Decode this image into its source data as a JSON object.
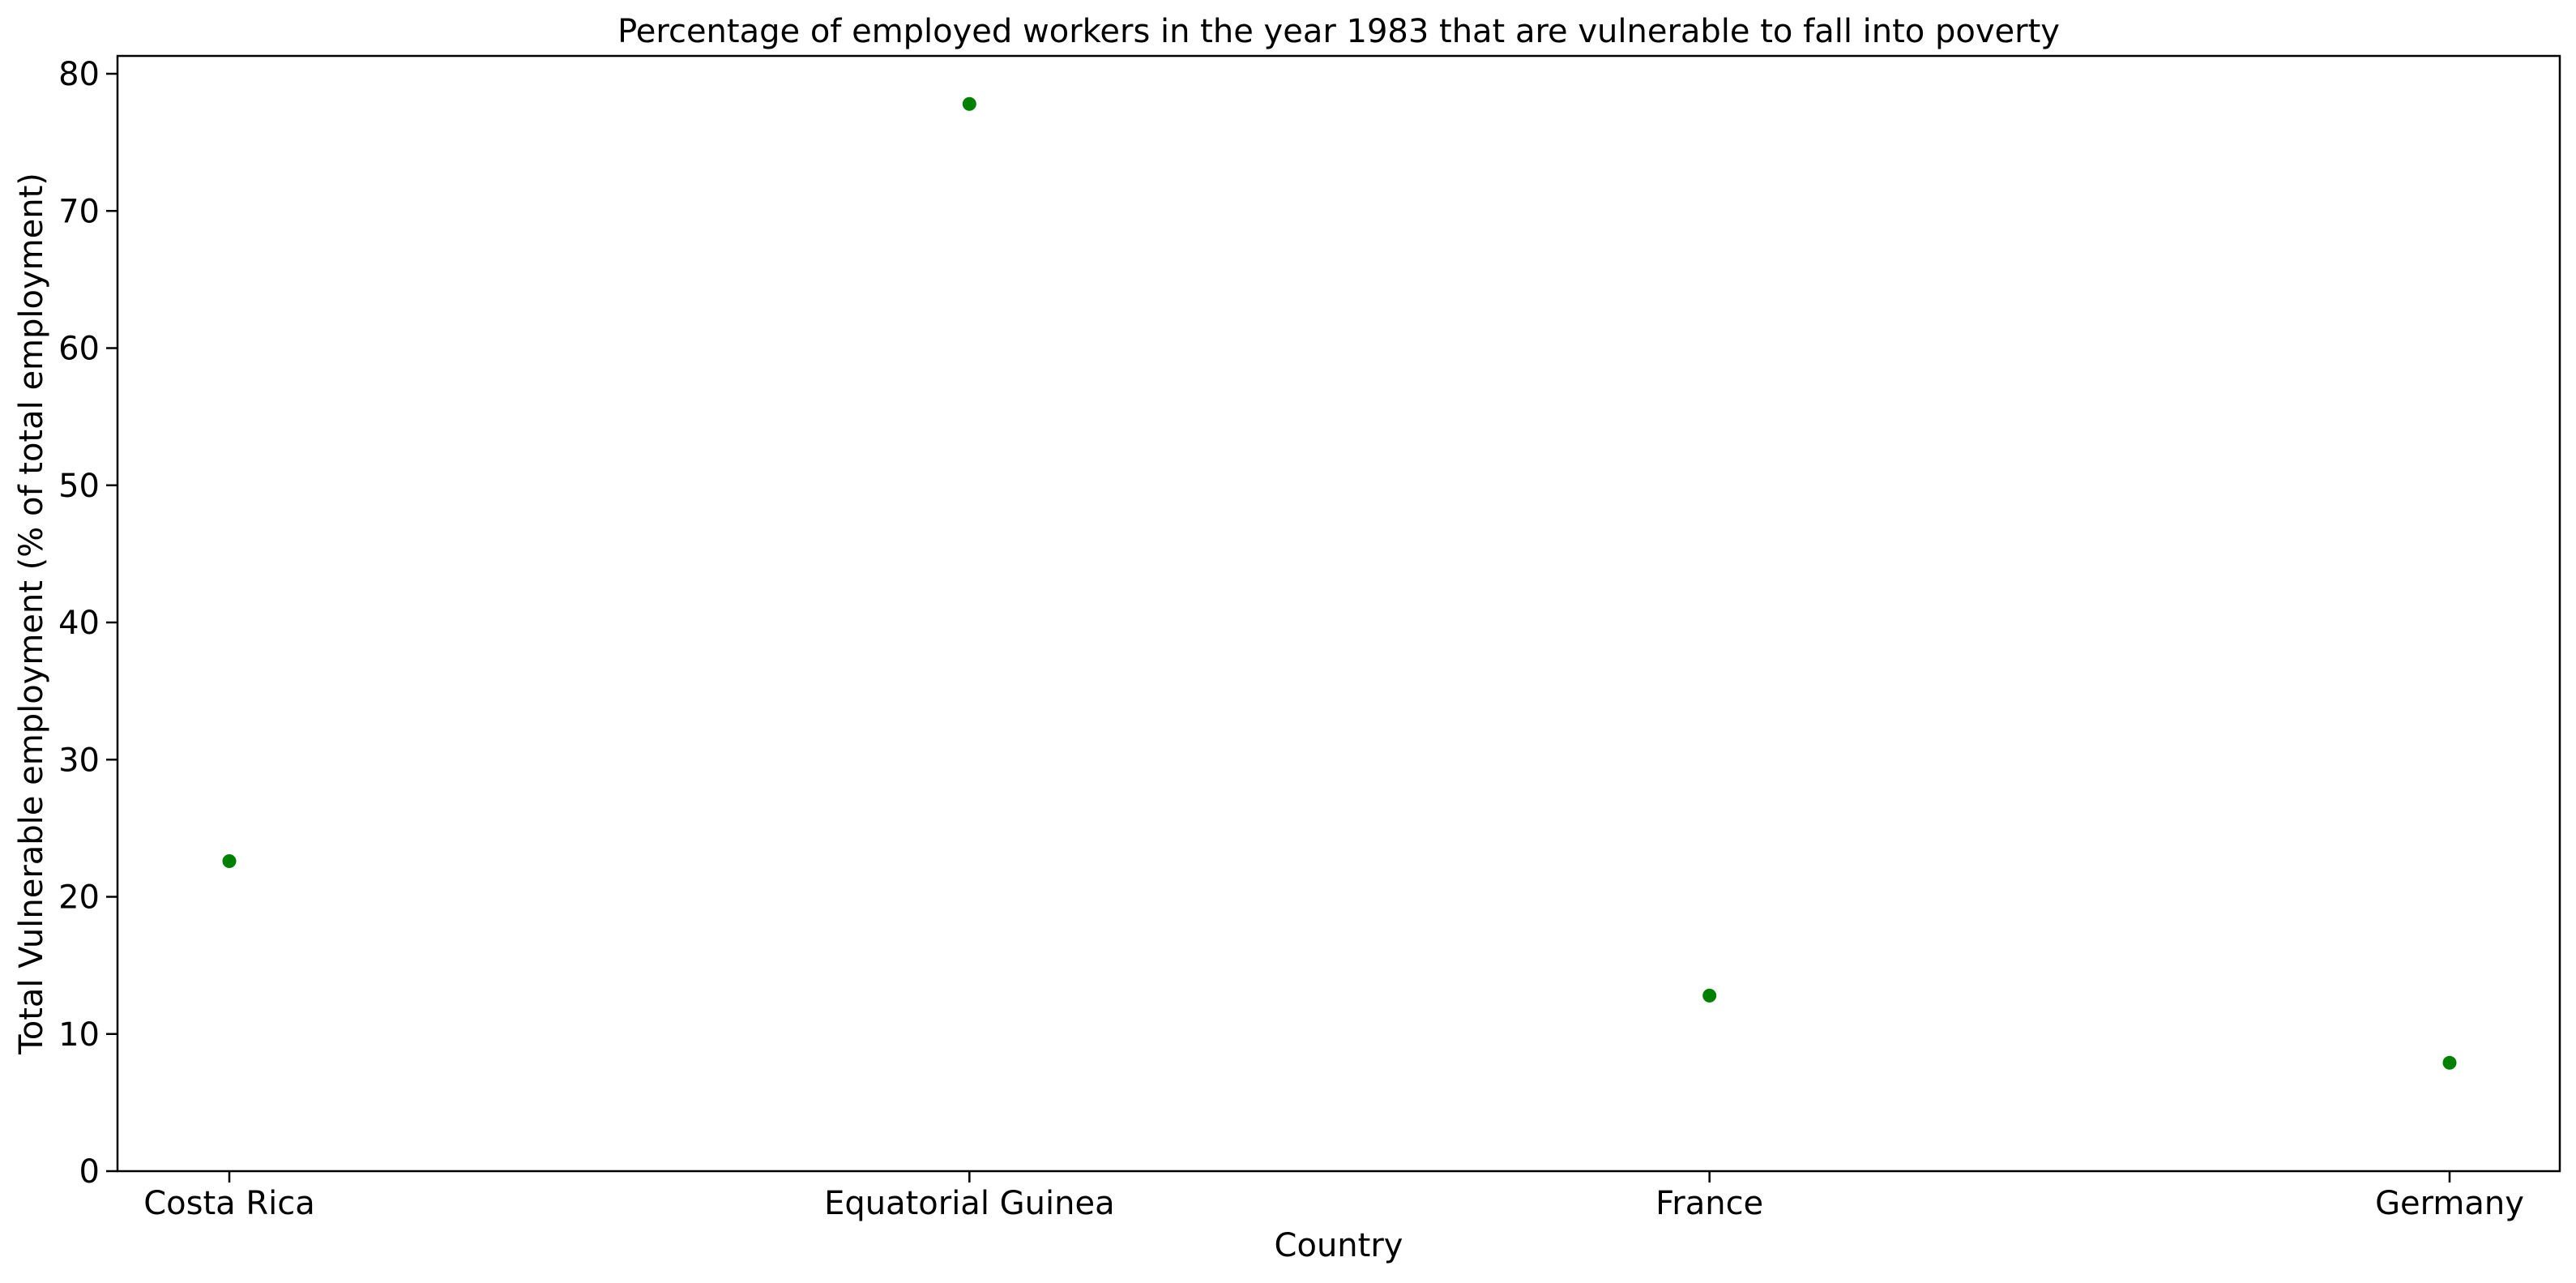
{
  "chart_data": {
    "type": "scatter",
    "title": "Percentage of employed workers in the year 1983 that are vulnerable to fall into poverty",
    "xlabel": "Country",
    "ylabel": "Total Vulnerable employment (% of total employment)",
    "categories": [
      "Costa Rica",
      "Equatorial Guinea",
      "France",
      "Germany"
    ],
    "series": [
      {
        "values": [
          22.6,
          77.8,
          12.8,
          7.9
        ],
        "color": "#008000"
      }
    ],
    "ylim": [
      0,
      81.3
    ],
    "yticks": [
      0,
      10,
      20,
      30,
      40,
      50,
      60,
      70,
      80
    ],
    "grid": false,
    "legend": false
  }
}
